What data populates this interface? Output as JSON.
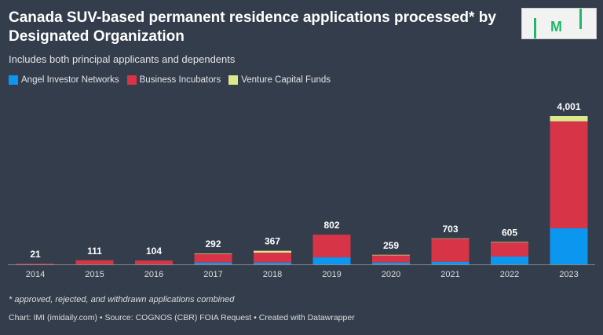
{
  "title": "Canada SUV-based permanent residence applications processed* by Designated Organization",
  "subtitle": "Includes both principal applicants and dependents",
  "note": "* approved, rejected, and withdrawn applications combined",
  "source": "Chart: IMI (imidaily.com) • Source: COGNOS (CBR) FOIA Request • Created with Datawrapper",
  "logo_text": "IMI",
  "chart_data": {
    "type": "bar",
    "stacked": true,
    "categories": [
      "2014",
      "2015",
      "2016",
      "2017",
      "2018",
      "2019",
      "2020",
      "2021",
      "2022",
      "2023"
    ],
    "series": [
      {
        "name": "Angel Investor Networks",
        "color": "#0b96f0",
        "values": [
          0,
          0,
          0,
          50,
          50,
          190,
          50,
          70,
          212,
          975
        ]
      },
      {
        "name": "Business Incubators",
        "color": "#d73547",
        "values": [
          21,
          111,
          104,
          227,
          267,
          612,
          194,
          623,
          380,
          2886
        ]
      },
      {
        "name": "Venture Capital Funds",
        "color": "#dce88c",
        "values": [
          0,
          0,
          0,
          15,
          50,
          0,
          15,
          10,
          13,
          140
        ]
      }
    ],
    "totals": [
      "21",
      "111",
      "104",
      "292",
      "367",
      "802",
      "259",
      "703",
      "605",
      "4,001"
    ],
    "ylim": [
      0,
      4001
    ],
    "grid": false,
    "legend": "top-left"
  }
}
